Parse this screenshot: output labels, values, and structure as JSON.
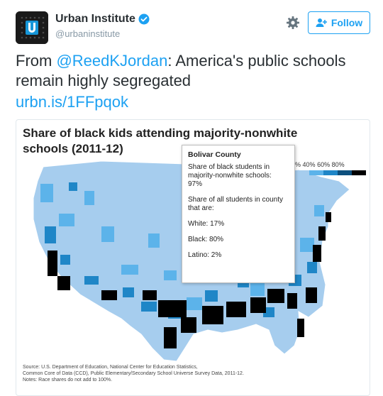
{
  "account": {
    "name": "Urban Institute",
    "handle": "@urbaninstitute",
    "follow_label": "Follow",
    "avatar_icon": "urban-institute-logo",
    "accent": "#1da1f2"
  },
  "tweet": {
    "prefix": "From ",
    "mention": "@ReedKJordan",
    "body": ": America's public schools remain highly segregated",
    "link": "urbn.is/1FFpqok"
  },
  "chart_data": {
    "type": "heatmap",
    "title": "Share of black kids attending majority-nonwhite schools (2011-12)",
    "legend": {
      "labels": [
        "%",
        "40%",
        "60%",
        "80%"
      ],
      "colors": [
        "#a6cdee",
        "#5cb3ea",
        "#1f86c7",
        "#0d4f7d",
        "#000000"
      ]
    },
    "tooltip": {
      "county": "Bolivar County",
      "share_black_label": "Share of black students in majority-nonwhite schools:",
      "share_black_value": "97%",
      "share_all_label": "Share of all students in county that are:",
      "white": "White: 17%",
      "black": "Black: 80%",
      "latino": "Latino: 2%"
    },
    "source": [
      "Source: U.S. Department of Education, National Center for Education Statistics,",
      "Common Core of Data (CCD), Public Elementary/Secondary School Universe Survey Data, 2011-12.",
      "Notes: Race shares do not add to 100%."
    ]
  }
}
